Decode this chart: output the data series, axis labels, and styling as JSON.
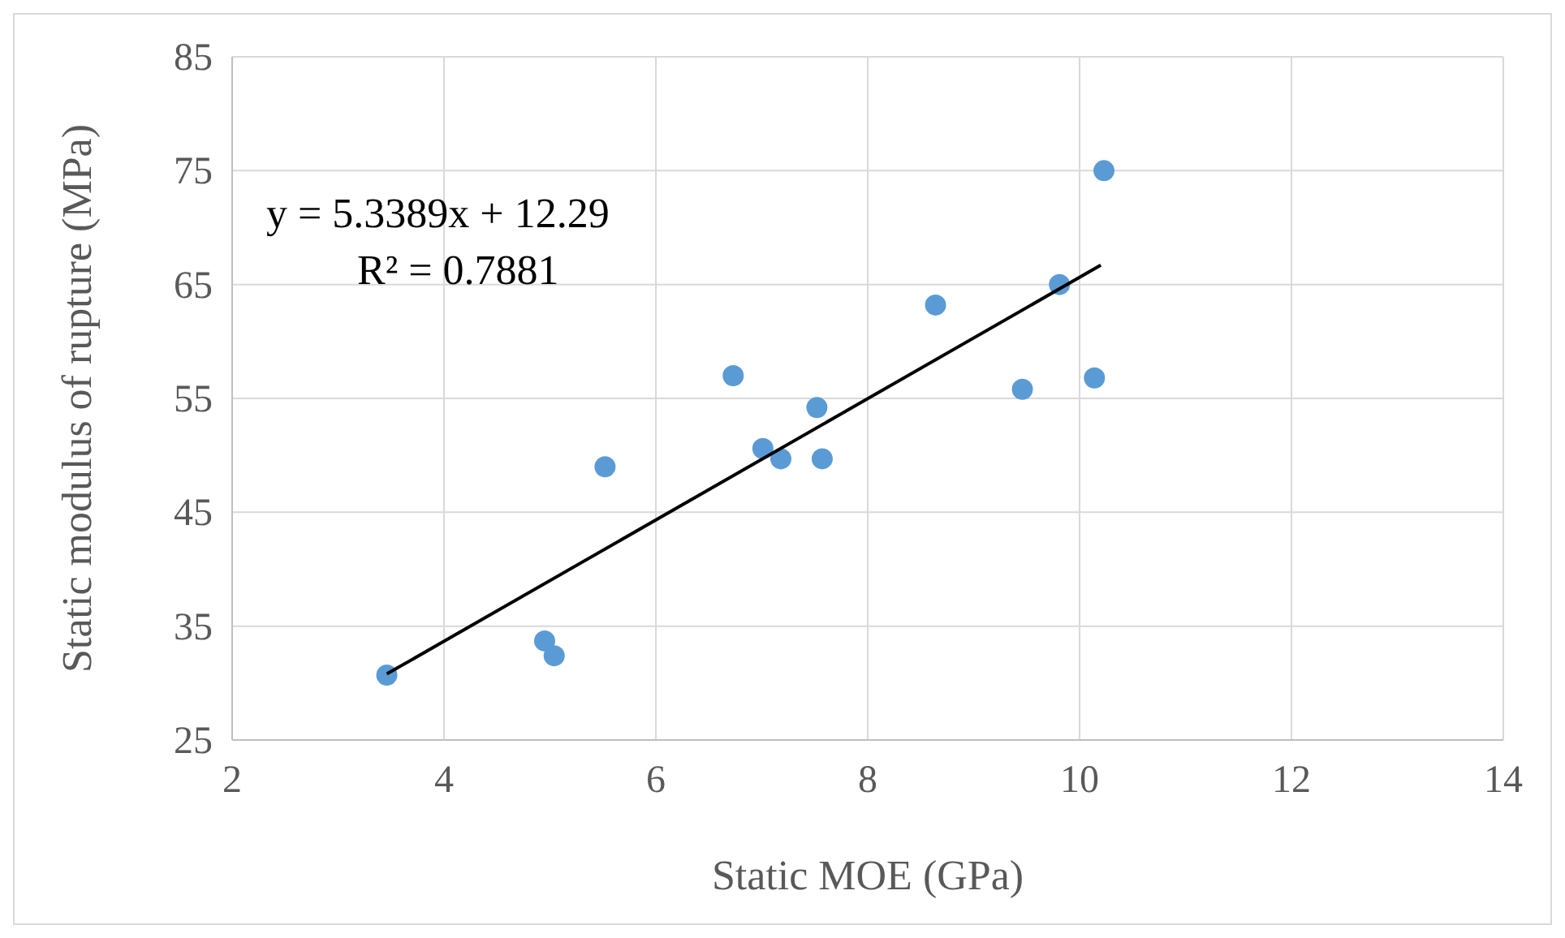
{
  "chart_data": {
    "type": "scatter",
    "xlabel": "Static MOE (GPa)",
    "ylabel": "Static modulus of rupture (MPa)",
    "xlim": [
      2,
      14
    ],
    "xticks": [
      2,
      4,
      6,
      8,
      10,
      12,
      14
    ],
    "ylim": [
      25,
      85
    ],
    "yticks": [
      25,
      35,
      45,
      55,
      65,
      75,
      85
    ],
    "grid": true,
    "marker": "circle",
    "series": [
      {
        "color": "#5b9bd5",
        "x": [
          3.46,
          4.95,
          5.04,
          5.52,
          6.73,
          7.01,
          7.18,
          7.52,
          7.57,
          8.64,
          9.46,
          9.81,
          10.14,
          10.23
        ],
        "values": [
          30.7,
          33.7,
          32.4,
          49.0,
          57.0,
          50.6,
          49.7,
          54.2,
          49.7,
          63.2,
          55.8,
          65.0,
          56.8,
          75.0
        ]
      },
      {
        "type": "line",
        "color": "#000000",
        "x": [
          3.46,
          10.2
        ],
        "values": [
          30.8,
          66.7
        ],
        "marker": "none"
      }
    ],
    "annotations": [
      "y = 5.3389x + 12.29",
      "R² = 0.7881"
    ]
  }
}
